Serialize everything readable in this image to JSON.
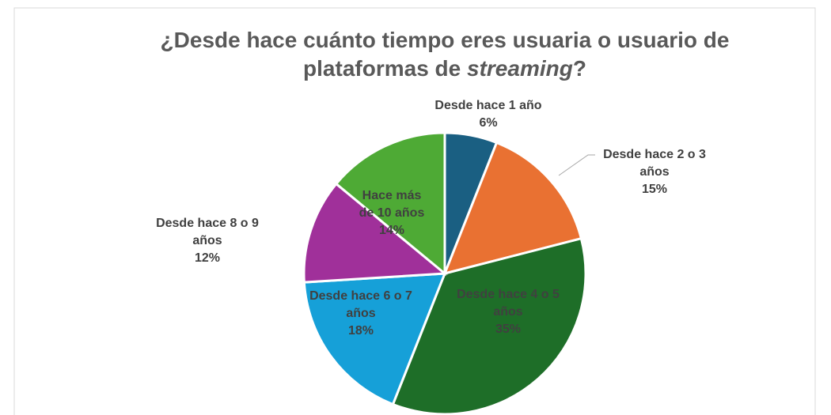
{
  "chart_data": {
    "type": "pie",
    "title": [
      "¿Desde hace cuánto tiempo eres usuaria o usuario de",
      "plataformas de ",
      "streaming",
      "?"
    ],
    "categories": [
      "Desde hace 1 año",
      "Desde hace 2 o 3 años",
      "Desde hace 4 o 5 años",
      "Desde hace 6 o 7 años",
      "Desde hace 8 o 9 años",
      "Hace más de 10 años"
    ],
    "values": [
      6,
      15,
      35,
      18,
      12,
      14
    ],
    "value_labels": [
      "6%",
      "15%",
      "35%",
      "18%",
      "12%",
      "14%"
    ],
    "colors": [
      "#1a5f82",
      "#e97132",
      "#1e6e28",
      "#16a0d8",
      "#a0309a",
      "#4eaa35"
    ]
  }
}
